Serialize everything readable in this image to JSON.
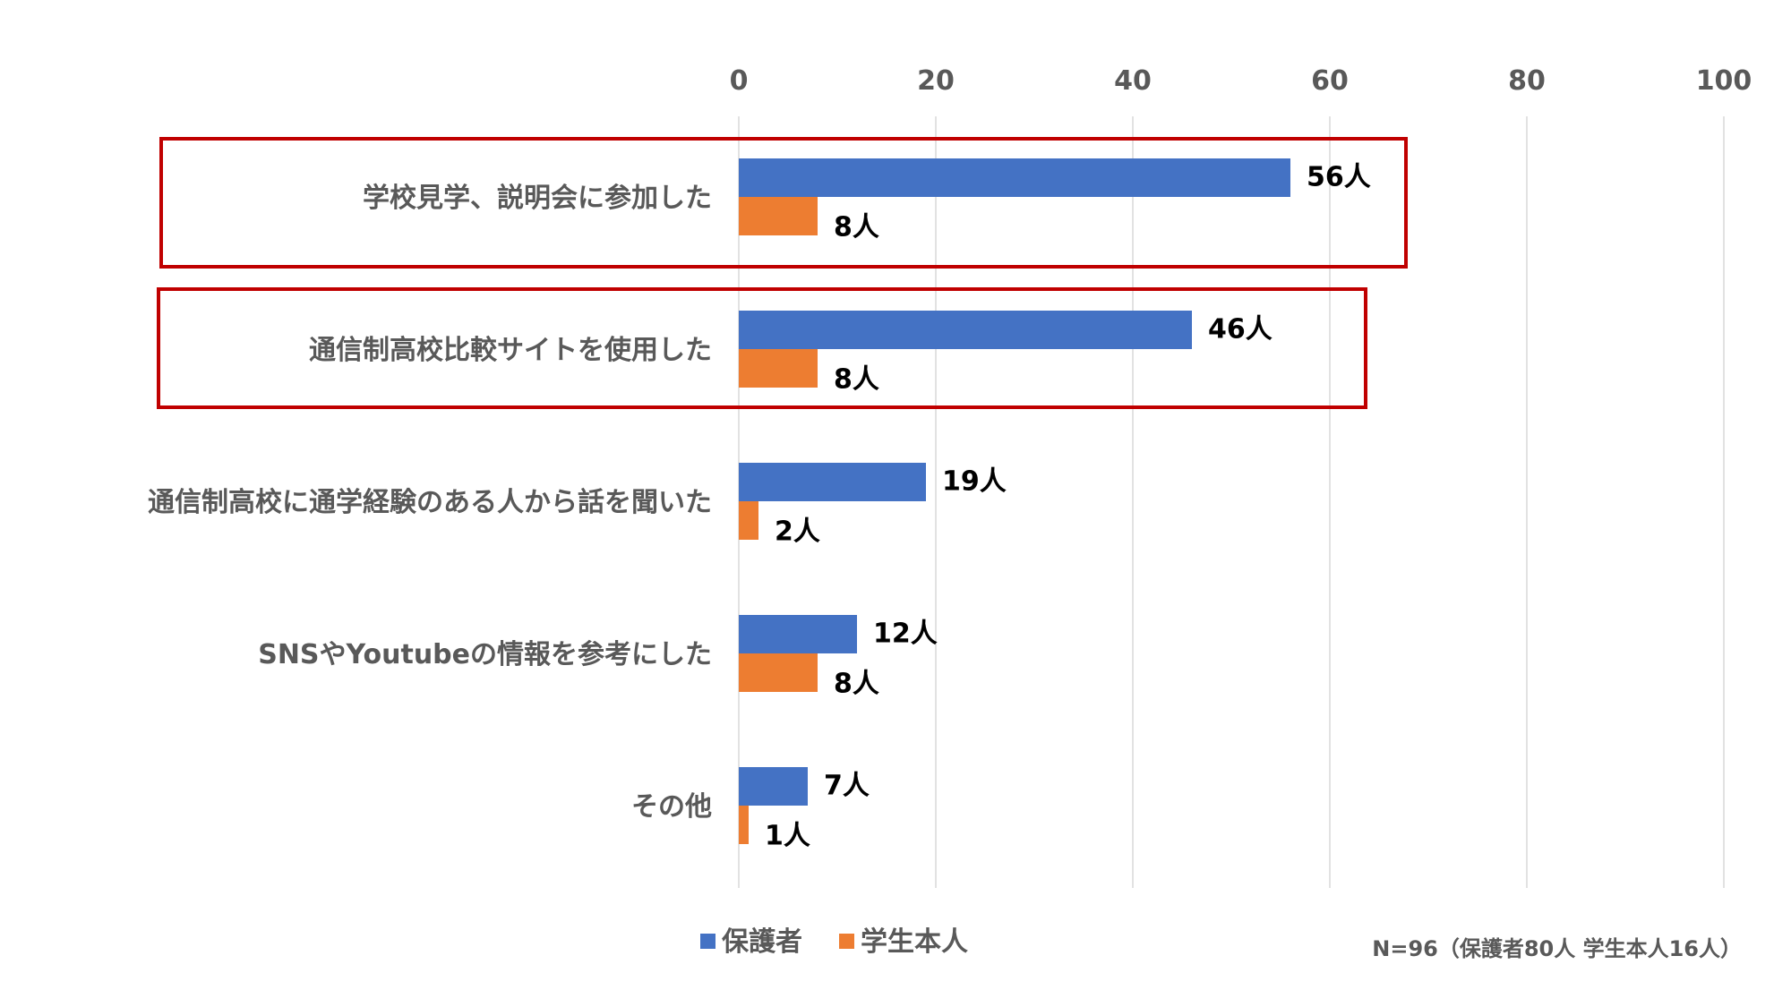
{
  "chart_data": {
    "type": "bar",
    "orientation": "horizontal",
    "categories": [
      "学校見学、説明会に参加した",
      "通信制高校比較サイトを使用した",
      "通信制高校に通学経験のある人から話を聞いた",
      "SNSやYoutubeの情報を参考にした",
      "その他"
    ],
    "series": [
      {
        "name": "保護者",
        "color": "#4472C4",
        "values": [
          56,
          46,
          19,
          12,
          7
        ],
        "labels": [
          "56人",
          "46人",
          "19人",
          "12人",
          "7人"
        ]
      },
      {
        "name": "学生本人",
        "color": "#ED7D31",
        "values": [
          8,
          8,
          2,
          8,
          1
        ],
        "labels": [
          "8人",
          "8人",
          "2人",
          "8人",
          "1人"
        ]
      }
    ],
    "xlim": [
      0,
      100
    ],
    "xticks": [
      0,
      20,
      40,
      60,
      80,
      100
    ],
    "xtick_labels": [
      "0",
      "20",
      "40",
      "60",
      "80",
      "100"
    ],
    "xaxis_position": "top",
    "grid": true,
    "legend_position": "bottom",
    "highlighted_categories": [
      0,
      1
    ],
    "highlight_color": "#C00000",
    "note": "N=96（保護者80人 学生本人16人）"
  }
}
